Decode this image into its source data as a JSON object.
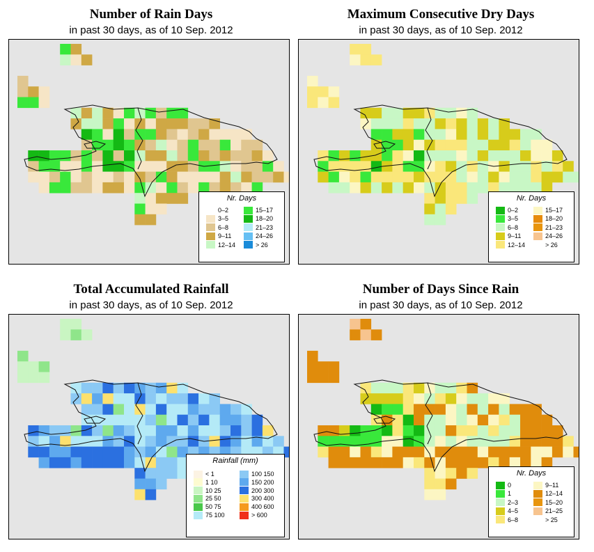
{
  "colors": {
    "sea": "#e5e5e5",
    "nodata": "#e5e5e5"
  },
  "panels": [
    {
      "id": "rain-days",
      "title": "Number of Rain Days",
      "subtitle": "in past 30 days, as of  10 Sep. 2012",
      "legend_title": "Nr. Days",
      "legend": [
        {
          "label": "0–2",
          "color": "#ffffff"
        },
        {
          "label": "3–5",
          "color": "#f6e5c6"
        },
        {
          "label": "6–8",
          "color": "#e0c690"
        },
        {
          "label": "9–11",
          "color": "#cfa845"
        },
        {
          "label": "12–14",
          "color": "#c8f7c5"
        },
        {
          "label": "15–17",
          "color": "#39e83b"
        },
        {
          "label": "18–20",
          "color": "#14b914"
        },
        {
          "label": "21–23",
          "color": "#b2eaf6"
        },
        {
          "label": "24–26",
          "color": "#65bff3"
        },
        {
          "label": "> 26",
          "color": "#1a8bd9"
        }
      ]
    },
    {
      "id": "max-dry-days",
      "title": "Maximum Consecutive Dry Days",
      "subtitle": "in past 30 days, as of  10 Sep. 2012",
      "legend_title": "Nr. Days",
      "legend": [
        {
          "label": "0–2",
          "color": "#14b914"
        },
        {
          "label": "3–5",
          "color": "#39e83b"
        },
        {
          "label": "6–8",
          "color": "#c8f7c5"
        },
        {
          "label": "9–11",
          "color": "#d7cc1b"
        },
        {
          "label": "12–14",
          "color": "#fae77a"
        },
        {
          "label": "15–17",
          "color": "#fcf6c3"
        },
        {
          "label": "18–20",
          "color": "#e78b0b"
        },
        {
          "label": "21–23",
          "color": "#e8950e"
        },
        {
          "label": "24–26",
          "color": "#f7c48f"
        },
        {
          "label": "> 26",
          "color": "#ffffff"
        }
      ]
    },
    {
      "id": "total-rainfall",
      "title": "Total Accumulated Rainfall",
      "subtitle": "in past 30 days, as of  10 Sep. 2012",
      "legend_title": "Rainfall (mm)",
      "legend": [
        {
          "label": "< 1",
          "color": "#fcf3e3"
        },
        {
          "label": "1    10",
          "color": "#fdfbd0"
        },
        {
          "label": "10   25",
          "color": "#c9f5c2"
        },
        {
          "label": "25   50",
          "color": "#8fe58a"
        },
        {
          "label": "50   75",
          "color": "#49c84a"
        },
        {
          "label": "75  100",
          "color": "#b4eaf7"
        },
        {
          "label": "100  150",
          "color": "#8bc9f4"
        },
        {
          "label": "150  200",
          "color": "#5ea9ee"
        },
        {
          "label": "200  300",
          "color": "#2b70e0"
        },
        {
          "label": "300  400",
          "color": "#fde16e"
        },
        {
          "label": "400  600",
          "color": "#f59a1e"
        },
        {
          "label": "> 600",
          "color": "#f0301a"
        }
      ]
    },
    {
      "id": "days-since-rain",
      "title": "Number of Days Since Rain",
      "subtitle": "in past 30 days, as of  10 Sep. 2012",
      "legend_title": "Nr. Days",
      "legend": [
        {
          "label": "0",
          "color": "#14b914"
        },
        {
          "label": "1",
          "color": "#39e83b"
        },
        {
          "label": "2–3",
          "color": "#c8f7c5"
        },
        {
          "label": "4–5",
          "color": "#d7cc1b"
        },
        {
          "label": "6–8",
          "color": "#fae77a"
        },
        {
          "label": "9–11",
          "color": "#fcf6c3"
        },
        {
          "label": "12–14",
          "color": "#e08c0c"
        },
        {
          "label": "15–20",
          "color": "#e8950e"
        },
        {
          "label": "21–25",
          "color": "#f7c48f"
        },
        {
          "label": "> 25",
          "color": "#ffffff"
        }
      ]
    }
  ]
}
